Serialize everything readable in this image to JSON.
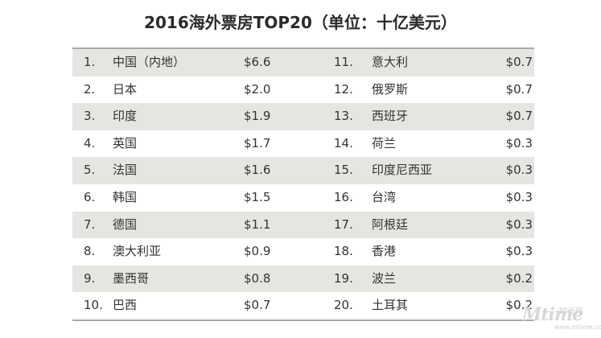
{
  "title": "2016海外票房TOP20（单位：十亿美元）",
  "rows": [
    {
      "left": {
        "rank": "1.",
        "name": "中国（内地）",
        "value": "$6.6"
      },
      "right": {
        "rank": "11.",
        "name": "意大利",
        "value": "$0.7"
      }
    },
    {
      "left": {
        "rank": "2.",
        "name": "日本",
        "value": "$2.0"
      },
      "right": {
        "rank": "12.",
        "name": "俄罗斯",
        "value": "$0.7"
      }
    },
    {
      "left": {
        "rank": "3.",
        "name": "印度",
        "value": "$1.9"
      },
      "right": {
        "rank": "13.",
        "name": "西班牙",
        "value": "$0.7"
      }
    },
    {
      "left": {
        "rank": "4.",
        "name": "英国",
        "value": "$1.7"
      },
      "right": {
        "rank": "14.",
        "name": "荷兰",
        "value": "$0.3"
      }
    },
    {
      "left": {
        "rank": "5.",
        "name": "法国",
        "value": "$1.6"
      },
      "right": {
        "rank": "15.",
        "name": "印度尼西亚",
        "value": "$0.3"
      }
    },
    {
      "left": {
        "rank": "6.",
        "name": "韩国",
        "value": "$1.5"
      },
      "right": {
        "rank": "16.",
        "name": "台湾",
        "value": "$0.3"
      }
    },
    {
      "left": {
        "rank": "7.",
        "name": "德国",
        "value": "$1.1"
      },
      "right": {
        "rank": "17.",
        "name": "阿根廷",
        "value": "$0.3"
      }
    },
    {
      "left": {
        "rank": "8.",
        "name": "澳大利亚",
        "value": "$0.9"
      },
      "right": {
        "rank": "18.",
        "name": "香港",
        "value": "$0.3"
      }
    },
    {
      "left": {
        "rank": "9.",
        "name": "墨西哥",
        "value": "$0.8"
      },
      "right": {
        "rank": "19.",
        "name": "波兰",
        "value": "$0.2"
      }
    },
    {
      "left": {
        "rank": "10.",
        "name": "巴西",
        "value": "$0.7"
      },
      "right": {
        "rank": "20.",
        "name": "土耳其",
        "value": "$0.2"
      }
    }
  ],
  "watermark": {
    "logo": "Mtime",
    "name_cn": "时光网",
    "url": "www.mtime.com"
  },
  "colors": {
    "row_shade": "#e7e5e1",
    "rule": "#a8a8a8",
    "text": "#333333"
  }
}
